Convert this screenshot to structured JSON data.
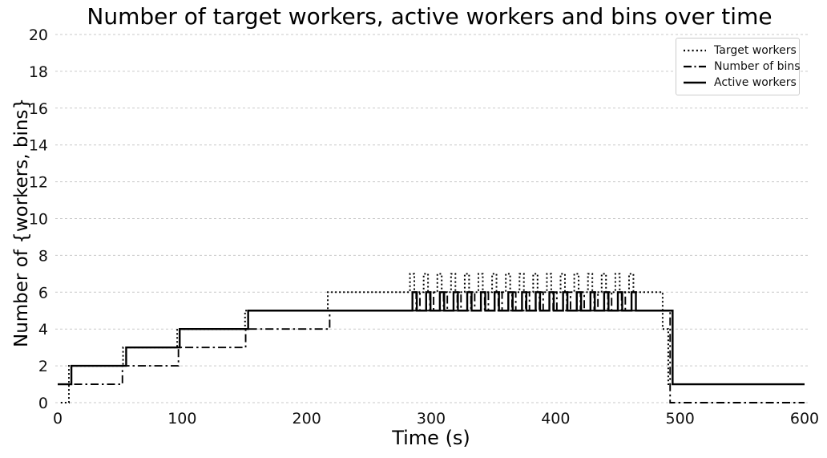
{
  "figure": {
    "title": "Number of target workers, active workers and bins over time",
    "xlabel": "Time (s)",
    "ylabel": "Number of {workers, bins}"
  },
  "legend": {
    "items": [
      {
        "label": "Target workers",
        "style": "dotted"
      },
      {
        "label": "Number of bins",
        "style": "dashdot"
      },
      {
        "label": "Active workers",
        "style": "solid"
      }
    ]
  },
  "colors": {
    "line": "#000000",
    "grid": "#c9c9c9",
    "text": "#111111"
  },
  "chart_data": {
    "type": "line",
    "title": "Number of target workers, active workers and bins over time",
    "xlabel": "Time (s)",
    "ylabel": "Number of {workers, bins}",
    "xlim": [
      0,
      600
    ],
    "ylim": [
      0,
      20
    ],
    "x_ticks": [
      0,
      100,
      200,
      300,
      400,
      500,
      600
    ],
    "y_ticks": [
      0,
      2,
      4,
      6,
      8,
      10,
      12,
      14,
      16,
      18,
      20
    ],
    "grid": "horizontal dashed gridlines only",
    "legend_position": "upper right",
    "step_interpolation": "post",
    "series": [
      {
        "name": "Target workers",
        "line_style": "dotted",
        "color": "#000000",
        "points": [
          [
            2.5,
            0
          ],
          [
            9,
            2
          ],
          [
            52.5,
            3
          ],
          [
            96,
            4
          ],
          [
            150.5,
            5
          ],
          [
            217,
            6
          ],
          [
            283,
            7
          ],
          [
            286.5,
            6
          ],
          [
            294,
            7
          ],
          [
            297.5,
            6
          ],
          [
            305,
            7
          ],
          [
            308.5,
            6
          ],
          [
            316,
            7
          ],
          [
            319.5,
            6
          ],
          [
            327,
            7
          ],
          [
            330.5,
            6
          ],
          [
            338,
            7
          ],
          [
            341.5,
            6
          ],
          [
            349,
            7
          ],
          [
            352.5,
            6
          ],
          [
            360,
            7
          ],
          [
            363.5,
            6
          ],
          [
            371,
            7
          ],
          [
            374.5,
            6
          ],
          [
            382,
            7
          ],
          [
            385.5,
            6
          ],
          [
            393,
            7
          ],
          [
            396.5,
            6
          ],
          [
            404,
            7
          ],
          [
            407.5,
            6
          ],
          [
            415,
            7
          ],
          [
            418.5,
            6
          ],
          [
            426,
            7
          ],
          [
            429.5,
            6
          ],
          [
            437,
            7
          ],
          [
            440.5,
            6
          ],
          [
            448,
            7
          ],
          [
            451.5,
            6
          ],
          [
            459,
            7
          ],
          [
            462.5,
            6
          ],
          [
            486,
            4
          ],
          [
            490.5,
            1
          ],
          [
            600,
            1
          ]
        ]
      },
      {
        "name": "Number of bins",
        "line_style": "dashdot",
        "color": "#000000",
        "points": [
          [
            0,
            1
          ],
          [
            52,
            2
          ],
          [
            97,
            3
          ],
          [
            151,
            4
          ],
          [
            218.5,
            5
          ],
          [
            288,
            6
          ],
          [
            291,
            5
          ],
          [
            299,
            6
          ],
          [
            302,
            5
          ],
          [
            310,
            6
          ],
          [
            313,
            5
          ],
          [
            321,
            6
          ],
          [
            324,
            5
          ],
          [
            332,
            6
          ],
          [
            335,
            5
          ],
          [
            343,
            6
          ],
          [
            346,
            5
          ],
          [
            354,
            6
          ],
          [
            357,
            5
          ],
          [
            365,
            6
          ],
          [
            368,
            5
          ],
          [
            376,
            6
          ],
          [
            379,
            5
          ],
          [
            387,
            6
          ],
          [
            390,
            5
          ],
          [
            398,
            6
          ],
          [
            401,
            5
          ],
          [
            409,
            6
          ],
          [
            412,
            5
          ],
          [
            420,
            6
          ],
          [
            423,
            5
          ],
          [
            431,
            6
          ],
          [
            434,
            5
          ],
          [
            442,
            6
          ],
          [
            445,
            5
          ],
          [
            453,
            6
          ],
          [
            456,
            5
          ],
          [
            492,
            0
          ],
          [
            600,
            0
          ]
        ]
      },
      {
        "name": "Active workers",
        "line_style": "solid",
        "color": "#000000",
        "points": [
          [
            0,
            1
          ],
          [
            11,
            2
          ],
          [
            55,
            3
          ],
          [
            98,
            4
          ],
          [
            153,
            5
          ],
          [
            285,
            6
          ],
          [
            288.5,
            5
          ],
          [
            296,
            6
          ],
          [
            299.5,
            5
          ],
          [
            307,
            6
          ],
          [
            310.5,
            5
          ],
          [
            318,
            6
          ],
          [
            321.5,
            5
          ],
          [
            329,
            6
          ],
          [
            332.5,
            5
          ],
          [
            340,
            6
          ],
          [
            343.5,
            5
          ],
          [
            351,
            6
          ],
          [
            354.5,
            5
          ],
          [
            362,
            6
          ],
          [
            365.5,
            5
          ],
          [
            373,
            6
          ],
          [
            376.5,
            5
          ],
          [
            384,
            6
          ],
          [
            387.5,
            5
          ],
          [
            395,
            6
          ],
          [
            398.5,
            5
          ],
          [
            406,
            6
          ],
          [
            409.5,
            5
          ],
          [
            417,
            6
          ],
          [
            420.5,
            5
          ],
          [
            428,
            6
          ],
          [
            431.5,
            5
          ],
          [
            439,
            6
          ],
          [
            442.5,
            5
          ],
          [
            450,
            6
          ],
          [
            453.5,
            5
          ],
          [
            461,
            6
          ],
          [
            464.5,
            5
          ],
          [
            494,
            1
          ],
          [
            600,
            1
          ]
        ]
      }
    ]
  }
}
